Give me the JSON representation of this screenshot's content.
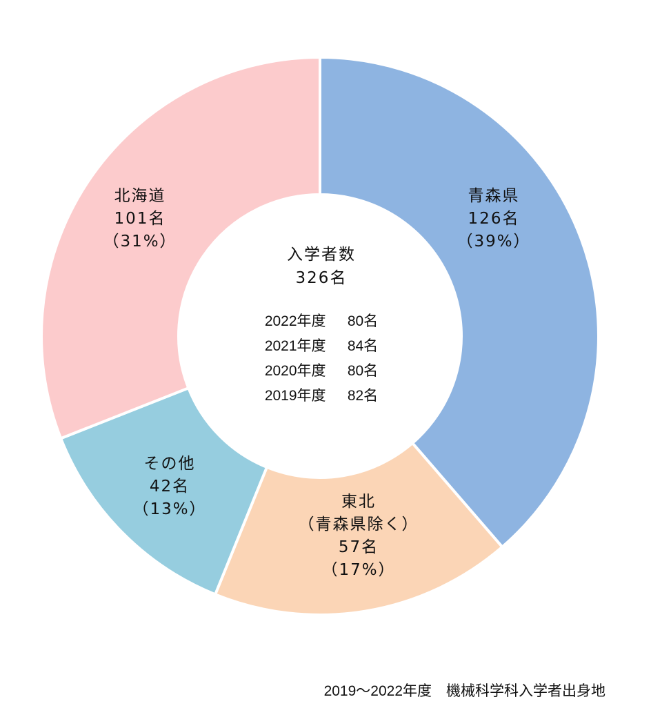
{
  "chart_data": {
    "type": "pie",
    "title": "",
    "caption": "2019～2022年度　機械科学科入学者出身地",
    "center": {
      "title": "入学者数",
      "total": "326名",
      "years": [
        {
          "label": "2022年度",
          "value": "80名"
        },
        {
          "label": "2021年度",
          "value": "84名"
        },
        {
          "label": "2020年度",
          "value": "80名"
        },
        {
          "label": "2019年度",
          "value": "82名"
        }
      ]
    },
    "slices": [
      {
        "name": "青森県",
        "sub": "",
        "count": 126,
        "count_label": "126名",
        "percent_label": "（39%）",
        "color": "#8eb4e1"
      },
      {
        "name": "東北",
        "sub": "（青森県除く）",
        "count": 57,
        "count_label": "57名",
        "percent_label": "（17%）",
        "color": "#fbd5b6"
      },
      {
        "name": "その他",
        "sub": "",
        "count": 42,
        "count_label": "42名",
        "percent_label": "（13%）",
        "color": "#96cddf"
      },
      {
        "name": "北海道",
        "sub": "",
        "count": 101,
        "count_label": "101名",
        "percent_label": "（31%）",
        "color": "#fccbcc"
      }
    ]
  }
}
